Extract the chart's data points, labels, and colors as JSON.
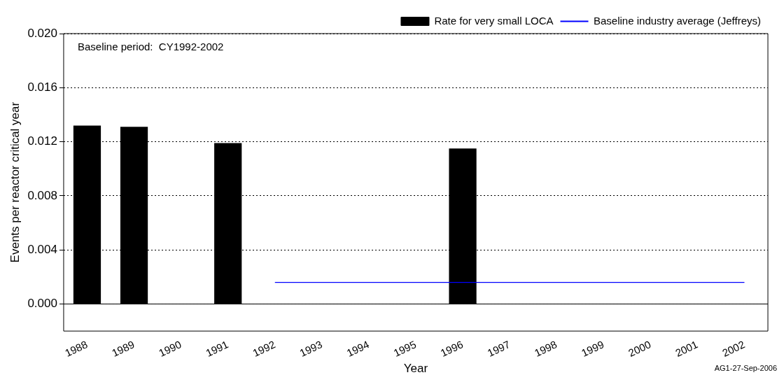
{
  "chart_data": {
    "type": "bar",
    "xlabel": "Year",
    "ylabel": "Events per reactor critical year",
    "categories": [
      "1988",
      "1989",
      "1990",
      "1991",
      "1992",
      "1993",
      "1994",
      "1995",
      "1996",
      "1997",
      "1998",
      "1999",
      "2000",
      "2001",
      "2002"
    ],
    "series": [
      {
        "name": "Rate for very small LOCA",
        "color": "#000000",
        "values": [
          0.0132,
          0.0131,
          0,
          0.0119,
          0,
          0,
          0,
          0,
          0.0115,
          0,
          0,
          0,
          0,
          0,
          0
        ]
      },
      {
        "name": "Baseline industry average (Jeffreys)",
        "type": "line",
        "color": "#0000ff",
        "values": [
          null,
          null,
          null,
          null,
          0.0016,
          0.0016,
          0.0016,
          0.0016,
          0.0016,
          0.0016,
          0.0016,
          0.0016,
          0.0016,
          0.0016,
          0.0016
        ]
      }
    ],
    "ylim": [
      -0.002,
      0.02
    ],
    "yticks": [
      {
        "value": 0,
        "label": "0.000"
      },
      {
        "value": 0.004,
        "label": "0.004"
      },
      {
        "value": 0.008,
        "label": "0.008"
      },
      {
        "value": 0.012,
        "label": "0.012"
      },
      {
        "value": 0.016,
        "label": "0.016"
      },
      {
        "value": 0.02,
        "label": "0.020"
      }
    ],
    "grid": "y",
    "legend": "top right",
    "marker": "none",
    "annotations": [
      "Baseline period:  CY1992-2002",
      "AG1-27-Sep-2006"
    ]
  }
}
